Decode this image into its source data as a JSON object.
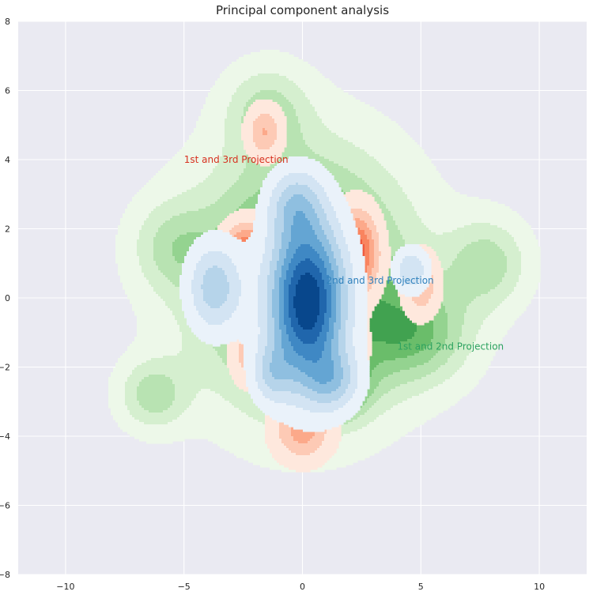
{
  "chart_data": {
    "type": "kde-contour",
    "title": "Principal component analysis",
    "xlabel": "",
    "ylabel": "",
    "xlim": [
      -12,
      12
    ],
    "ylim": [
      -8,
      8
    ],
    "xticks": [
      -10,
      -5,
      0,
      5,
      10
    ],
    "yticks": [
      -8,
      -6,
      -4,
      -2,
      0,
      2,
      4,
      6,
      8
    ],
    "grid": true,
    "background": "#eaeaf2",
    "series": [
      {
        "name": "1st and 2nd Projection",
        "color": "#2ca25f",
        "palette": [
          "#edf8e9",
          "#d5efcf",
          "#b8e3b2",
          "#94d390",
          "#6abd6a",
          "#41a250",
          "#1e8742"
        ],
        "label_at": [
          4,
          -1.4
        ],
        "components": [
          {
            "x": 0,
            "y": 0.5,
            "sx": 3.0,
            "sy": 2.4,
            "w": 1.0
          },
          {
            "x": 1.0,
            "y": -2.6,
            "sx": 1.1,
            "sy": 0.6,
            "w": 0.85
          },
          {
            "x": 4.8,
            "y": -1.0,
            "sx": 1.6,
            "sy": 1.0,
            "w": 0.5
          },
          {
            "x": 7.8,
            "y": 1.0,
            "sx": 1.2,
            "sy": 0.9,
            "w": 0.4
          },
          {
            "x": -1.5,
            "y": 5.4,
            "sx": 1.2,
            "sy": 0.9,
            "w": 0.35
          },
          {
            "x": -6.3,
            "y": -2.8,
            "sx": 1.0,
            "sy": 0.7,
            "w": 0.4
          },
          {
            "x": -5.5,
            "y": 1.5,
            "sx": 1.2,
            "sy": 0.9,
            "w": 0.3
          }
        ]
      },
      {
        "name": "1st and 3rd Projection",
        "color": "#d7301f",
        "palette": [
          "#fee8dd",
          "#fdcab5",
          "#fca98a",
          "#f9845f",
          "#ef5a3e"
        ],
        "label_at": [
          -5,
          4.0
        ],
        "components": [
          {
            "x": -2.3,
            "y": 1.2,
            "sx": 0.7,
            "sy": 0.6,
            "w": 1.0
          },
          {
            "x": 2.3,
            "y": 1.3,
            "sx": 0.6,
            "sy": 0.8,
            "w": 0.95
          },
          {
            "x": 0,
            "y": -3.8,
            "sx": 0.8,
            "sy": 0.6,
            "w": 0.55
          },
          {
            "x": -1.6,
            "y": 4.8,
            "sx": 0.5,
            "sy": 0.5,
            "w": 0.45
          },
          {
            "x": 5.0,
            "y": 0.4,
            "sx": 0.5,
            "sy": 0.6,
            "w": 0.45
          },
          {
            "x": -2.3,
            "y": -1.6,
            "sx": 0.5,
            "sy": 0.6,
            "w": 0.35
          },
          {
            "x": 2.0,
            "y": -1.4,
            "sx": 0.5,
            "sy": 0.6,
            "w": 0.35
          }
        ]
      },
      {
        "name": "2nd and 3rd Projection",
        "color": "#3182bd",
        "palette": [
          "#eaf2fa",
          "#d3e4f3",
          "#b6d4ea",
          "#8fbfe0",
          "#64a5d3",
          "#3f88c4",
          "#2066ac",
          "#08478c"
        ],
        "label_at": [
          1,
          0.5
        ],
        "components": [
          {
            "x": 0.2,
            "y": -0.1,
            "sx": 1.1,
            "sy": 1.6,
            "w": 1.0
          },
          {
            "x": -3.7,
            "y": 0.3,
            "sx": 0.8,
            "sy": 0.9,
            "w": 0.38
          },
          {
            "x": -0.3,
            "y": 2.7,
            "sx": 0.8,
            "sy": 0.7,
            "w": 0.3
          },
          {
            "x": 4.6,
            "y": 0.8,
            "sx": 0.5,
            "sy": 0.45,
            "w": 0.3
          },
          {
            "x": 1.3,
            "y": -2.4,
            "sx": 0.8,
            "sy": 0.6,
            "w": 0.3
          },
          {
            "x": -1.3,
            "y": -2.2,
            "sx": 0.6,
            "sy": 0.6,
            "w": 0.25
          }
        ]
      }
    ]
  }
}
